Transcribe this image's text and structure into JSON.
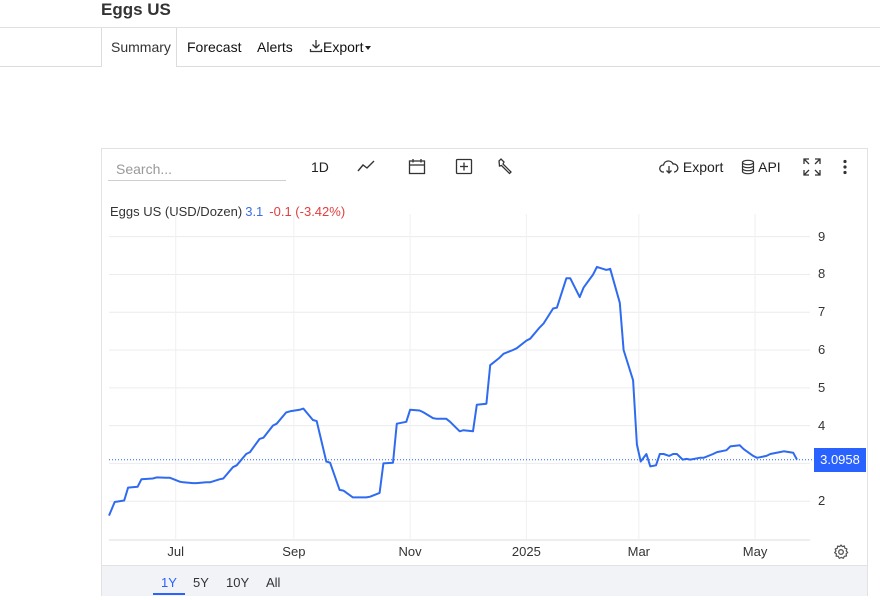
{
  "page_title": "Eggs US",
  "tabs": [
    {
      "label": "Summary"
    },
    {
      "label": "Forecast"
    },
    {
      "label": "Alerts"
    },
    {
      "label": "Export"
    }
  ],
  "toolbar": {
    "search_placeholder": "Search...",
    "interval_label": "1D",
    "export_label": "Export",
    "api_label": "API"
  },
  "legend": {
    "name": "Eggs US (USD/Dozen)",
    "value": "3.1",
    "change": "-0.1 (-3.42%)"
  },
  "last_price_label": "3.0958",
  "range_buttons": [
    "1Y",
    "5Y",
    "10Y",
    "All"
  ],
  "colors": {
    "line": "#2f6bf0",
    "accent": "#2962ff",
    "down": "#e04040"
  },
  "chart_data": {
    "type": "line",
    "title": "Eggs US (USD/Dozen)",
    "x_ticks": [
      "Jul",
      "Sep",
      "Nov",
      "2025",
      "Mar",
      "May"
    ],
    "y_ticks": [
      2,
      3,
      4,
      5,
      6,
      7,
      8,
      9
    ],
    "ylim": [
      1.0,
      9.6
    ],
    "last_value": 3.0958,
    "grid": true,
    "series": [
      {
        "name": "Eggs US",
        "x": [
          "2024-05-27",
          "2024-05-30",
          "2024-06-04",
          "2024-06-06",
          "2024-06-11",
          "2024-06-13",
          "2024-06-19",
          "2024-06-21",
          "2024-06-26",
          "2024-06-28",
          "2024-07-03",
          "2024-07-05",
          "2024-07-10",
          "2024-07-12",
          "2024-07-17",
          "2024-07-19",
          "2024-07-24",
          "2024-07-26",
          "2024-07-31",
          "2024-08-02",
          "2024-08-07",
          "2024-08-09",
          "2024-08-14",
          "2024-08-16",
          "2024-08-21",
          "2024-08-23",
          "2024-08-28",
          "2024-08-30",
          "2024-09-04",
          "2024-09-06",
          "2024-09-11",
          "2024-09-13",
          "2024-09-18",
          "2024-09-20",
          "2024-09-25",
          "2024-09-27",
          "2024-10-02",
          "2024-10-04",
          "2024-10-09",
          "2024-10-11",
          "2024-10-16",
          "2024-10-18",
          "2024-10-23",
          "2024-10-25",
          "2024-10-30",
          "2024-11-01",
          "2024-11-06",
          "2024-11-08",
          "2024-11-13",
          "2024-11-15",
          "2024-11-20",
          "2024-11-22",
          "2024-11-27",
          "2024-11-29",
          "2024-12-04",
          "2024-12-06",
          "2024-12-11",
          "2024-12-13",
          "2024-12-18",
          "2024-12-20",
          "2024-12-25",
          "2024-12-27",
          "2025-01-01",
          "2025-01-03",
          "2025-01-08",
          "2025-01-10",
          "2025-01-15",
          "2025-01-17",
          "2025-01-22",
          "2025-01-24",
          "2025-01-29",
          "2025-01-31",
          "2025-02-05",
          "2025-02-07",
          "2025-02-12",
          "2025-02-14",
          "2025-02-19",
          "2025-02-21",
          "2025-02-26",
          "2025-02-28",
          "2025-03-02",
          "2025-03-05",
          "2025-03-07",
          "2025-03-10",
          "2025-03-12",
          "2025-03-14",
          "2025-03-17",
          "2025-03-19",
          "2025-03-21",
          "2025-03-24",
          "2025-03-26",
          "2025-03-28",
          "2025-04-02",
          "2025-04-04",
          "2025-04-09",
          "2025-04-11",
          "2025-04-16",
          "2025-04-18",
          "2025-04-23",
          "2025-04-25",
          "2025-04-30",
          "2025-05-02",
          "2025-05-07",
          "2025-05-09",
          "2025-05-14",
          "2025-05-16",
          "2025-05-21",
          "2025-05-23"
        ],
        "y": [
          1.62,
          1.98,
          2.02,
          2.36,
          2.38,
          2.58,
          2.6,
          2.63,
          2.62,
          2.62,
          2.52,
          2.5,
          2.48,
          2.48,
          2.5,
          2.5,
          2.58,
          2.6,
          2.9,
          2.95,
          3.25,
          3.3,
          3.65,
          3.68,
          4.0,
          4.05,
          4.35,
          4.38,
          4.42,
          4.45,
          4.15,
          4.12,
          3.05,
          3.02,
          2.3,
          2.28,
          2.1,
          2.1,
          2.1,
          2.12,
          2.22,
          3.0,
          3.02,
          4.05,
          4.1,
          4.42,
          4.4,
          4.35,
          4.2,
          4.18,
          4.18,
          4.1,
          3.85,
          3.88,
          3.85,
          4.55,
          4.58,
          5.6,
          5.8,
          5.9,
          6.0,
          6.05,
          6.25,
          6.3,
          6.6,
          6.7,
          7.1,
          7.12,
          7.9,
          7.9,
          7.4,
          7.65,
          8.0,
          8.2,
          8.12,
          8.15,
          7.25,
          6.0,
          5.2,
          3.5,
          3.05,
          3.25,
          2.92,
          2.95,
          3.25,
          3.25,
          3.2,
          3.25,
          3.25,
          3.1,
          3.12,
          3.1,
          3.15,
          3.15,
          3.25,
          3.3,
          3.35,
          3.45,
          3.48,
          3.38,
          3.2,
          3.15,
          3.2,
          3.25,
          3.3,
          3.32,
          3.28,
          3.1
        ]
      }
    ]
  }
}
